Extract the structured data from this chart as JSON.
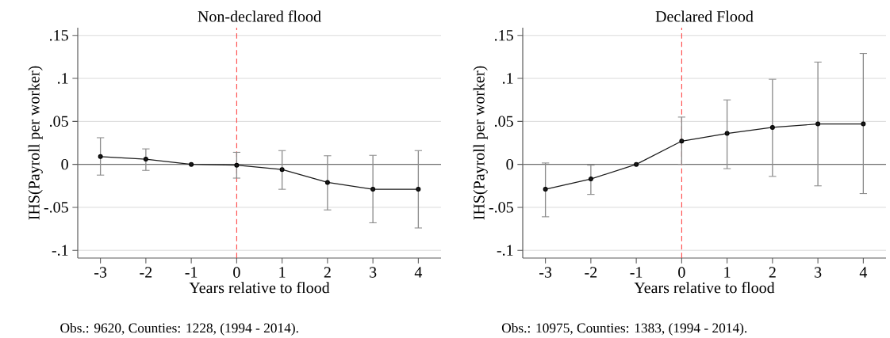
{
  "chart_data": [
    {
      "type": "line",
      "title": "Non-declared flood",
      "xlabel": "Years relative to flood",
      "ylabel": "IHS(Payroll per worker)",
      "annotations": [
        "Obs.: 9620, Counties: 1228, (1994 - 2014)."
      ],
      "x": [
        -3,
        -2,
        -1,
        0,
        1,
        2,
        3,
        4
      ],
      "series": [
        {
          "color": "#1a1a1a",
          "values": [
            0.009,
            0.006,
            0,
            -0.001,
            -0.006,
            -0.021,
            -0.029,
            -0.029
          ],
          "errors": [
            [
              -0.0125,
              0.031
            ],
            [
              -0.007,
              0.018
            ],
            null,
            [
              -0.016,
              0.014
            ],
            [
              -0.029,
              0.016
            ],
            [
              -0.053,
              0.01
            ],
            [
              -0.068,
              0.0105
            ],
            [
              -0.074,
              0.016
            ]
          ]
        }
      ],
      "xlim": [
        -3.5,
        4.5
      ],
      "ylim": [
        -0.109,
        0.159
      ],
      "xticks": [
        -3,
        -2,
        -1,
        0,
        1,
        2,
        3,
        4
      ],
      "yticks": [
        {
          "value": -0.1,
          "label": "-.1"
        },
        {
          "value": -0.05,
          "label": "-.05"
        },
        0,
        {
          "value": 0.05,
          "label": ".05"
        },
        {
          "value": 0.1,
          "label": ".1"
        },
        {
          "value": 0.15,
          "label": ".15"
        }
      ],
      "grid": "y",
      "marker": "circle",
      "line_style": "solid",
      "ref_lines": [
        {
          "axis": "y",
          "value": 0,
          "color": "#707070",
          "line_style": "solid"
        },
        {
          "axis": "x",
          "value": 0,
          "color": "#ff4040",
          "line_style": "dashed"
        }
      ]
    },
    {
      "type": "line",
      "title": "Declared Flood",
      "xlabel": "Years relative to flood",
      "ylabel": "IHS(Payroll per worker)",
      "annotations": [
        "Obs.: 10975, Counties: 1383, (1994 - 2014)."
      ],
      "x": [
        -3,
        -2,
        -1,
        0,
        1,
        2,
        3,
        4
      ],
      "series": [
        {
          "color": "#1a1a1a",
          "values": [
            -0.029,
            -0.017,
            0,
            0.027,
            0.036,
            0.043,
            0.047,
            0.047
          ],
          "errors": [
            [
              -0.061,
              0.0016
            ],
            [
              -0.035,
              -0.001
            ],
            null,
            [
              0,
              0.055
            ],
            [
              -0.005,
              0.075
            ],
            [
              -0.014,
              0.099
            ],
            [
              -0.025,
              0.119
            ],
            [
              -0.034,
              0.129
            ]
          ]
        }
      ],
      "xlim": [
        -3.5,
        4.5
      ],
      "ylim": [
        -0.109,
        0.159
      ],
      "xticks": [
        -3,
        -2,
        -1,
        0,
        1,
        2,
        3,
        4
      ],
      "yticks": [
        {
          "value": -0.1,
          "label": "-.1"
        },
        {
          "value": -0.05,
          "label": "-.05"
        },
        0,
        {
          "value": 0.05,
          "label": ".05"
        },
        {
          "value": 0.1,
          "label": ".1"
        },
        {
          "value": 0.15,
          "label": ".15"
        }
      ],
      "grid": "y",
      "marker": "circle",
      "line_style": "solid",
      "ref_lines": [
        {
          "axis": "y",
          "value": 0,
          "color": "#707070",
          "line_style": "solid"
        },
        {
          "axis": "x",
          "value": 0,
          "color": "#ff4040",
          "line_style": "dashed"
        }
      ]
    }
  ]
}
